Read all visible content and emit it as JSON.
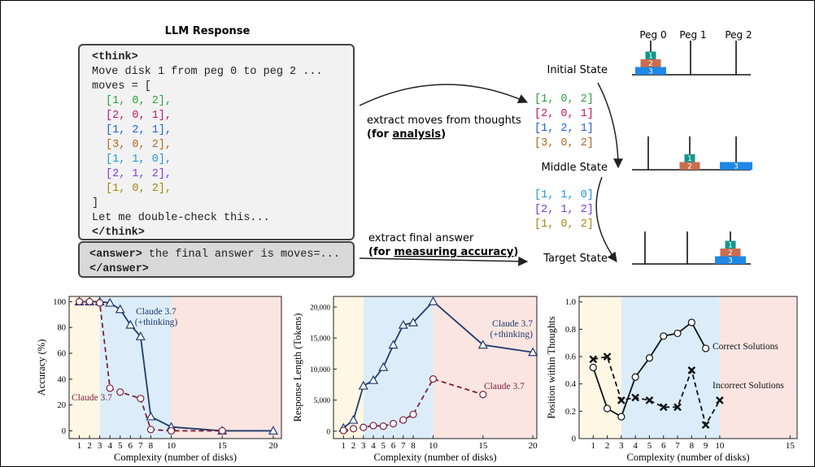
{
  "diagram": {
    "title": "LLM Response",
    "code_head": [
      "<think>",
      "Move disk 1 from peg 0 to peg 2 ...",
      "moves = ["
    ],
    "moves": [
      {
        "text": "[1, 0, 2],",
        "color": "#2e9e3e"
      },
      {
        "text": "[2, 0, 1],",
        "color": "#c2185b"
      },
      {
        "text": "[1, 2, 1],",
        "color": "#1f5fd6"
      },
      {
        "text": "[3, 0, 2],",
        "color": "#b5651d"
      },
      {
        "text": "[1, 1, 0],",
        "color": "#2196e0"
      },
      {
        "text": "[2, 1, 2],",
        "color": "#7b3fd6"
      },
      {
        "text": "[1, 0, 2],",
        "color": "#a8860b"
      }
    ],
    "code_tail": [
      "]",
      "Let me double-check this...",
      "</think>"
    ],
    "answer": [
      [
        "<answer>",
        " the final answer is moves=..."
      ],
      [
        "</answer>"
      ]
    ],
    "arrow_moves": {
      "line1": "extract moves  from thoughts",
      "line2": [
        "(for ",
        "analysis",
        ")"
      ]
    },
    "arrow_answer": {
      "line1": "extract final answer",
      "line2": [
        "(for ",
        "measuring accuracy",
        ")"
      ]
    },
    "extracted_moves": [
      [
        "[1, 0, 2]",
        "[2, 0, 1]",
        "[1, 2, 1]",
        "[3, 0, 2]"
      ],
      [
        "[1, 1, 0]",
        "[2, 1, 2]",
        "[1, 0, 2]"
      ]
    ],
    "states": [
      "Initial State",
      "Middle State",
      "Target State"
    ],
    "pegs": [
      "Peg 0",
      "Peg 1",
      "Peg 2"
    ],
    "disks": [
      "1",
      "2",
      "3"
    ]
  },
  "chart_data": [
    {
      "type": "line",
      "xlabel": "Complexity (number of disks)",
      "ylabel": "Accuracy (%)",
      "xlim": [
        0,
        20.8
      ],
      "ylim": [
        -6,
        104
      ],
      "xticks": [
        1,
        2,
        3,
        4,
        5,
        6,
        7,
        8,
        10,
        15,
        20
      ],
      "yticks": [
        0,
        20,
        40,
        60,
        80,
        100
      ],
      "regions": [
        {
          "from": 0,
          "to": 3,
          "color": "#fdf7e4"
        },
        {
          "from": 3,
          "to": 10,
          "color": "#dcedf9"
        },
        {
          "from": 10,
          "to": 20.8,
          "color": "#fae5e1"
        }
      ],
      "series": [
        {
          "name": "Claude 3.7 (+thinking)",
          "color": "#1f3a6e",
          "marker": "triangle",
          "dashed": false,
          "x": [
            1,
            2,
            3,
            4,
            5,
            6,
            7,
            8,
            10,
            15,
            20
          ],
          "values": [
            100,
            100,
            100,
            99,
            94,
            82,
            73,
            11,
            3,
            0,
            0
          ]
        },
        {
          "name": "Claude 3.7",
          "color": "#7b1f3c",
          "marker": "circle",
          "dashed": true,
          "x": [
            1,
            2,
            3,
            4,
            5,
            7,
            8,
            10,
            15
          ],
          "values": [
            100,
            100,
            99,
            33,
            30,
            25,
            1,
            0,
            0
          ]
        }
      ]
    },
    {
      "type": "line",
      "xlabel": "Complexity (number of disks)",
      "ylabel": "Response Length (Tokens)",
      "xlim": [
        0,
        20.4
      ],
      "ylim": [
        -1200,
        21700
      ],
      "xticks": [
        1,
        2,
        3,
        4,
        5,
        6,
        7,
        8,
        10,
        15,
        20
      ],
      "yticks": [
        0,
        {
          "value": 5000,
          "label": "5,000"
        },
        {
          "value": 10000,
          "label": "10,000"
        },
        {
          "value": 15000,
          "label": "15,000"
        },
        {
          "value": 20000,
          "label": "20,000"
        }
      ],
      "regions": [
        {
          "from": 0,
          "to": 3,
          "color": "#fdf7e4"
        },
        {
          "from": 3,
          "to": 10,
          "color": "#dcedf9"
        },
        {
          "from": 10,
          "to": 20.4,
          "color": "#fae5e1"
        }
      ],
      "series": [
        {
          "name": "Claude 3.7 (+thinking)",
          "color": "#1f3a6e",
          "marker": "triangle",
          "dashed": false,
          "x": [
            1,
            2,
            3,
            4,
            5,
            6,
            7,
            8,
            10,
            15,
            20
          ],
          "values": [
            500,
            1800,
            7300,
            8200,
            10300,
            13900,
            17100,
            17500,
            20900,
            13900,
            12700
          ]
        },
        {
          "name": "Claude 3.7",
          "color": "#7b1f3c",
          "marker": "circle",
          "dashed": true,
          "x": [
            1,
            2,
            3,
            4,
            5,
            6,
            7,
            8,
            10,
            15
          ],
          "values": [
            100,
            400,
            600,
            900,
            800,
            1200,
            1800,
            2700,
            8400,
            5900
          ]
        }
      ]
    },
    {
      "type": "line",
      "xlabel": "Complexity (number of disks)",
      "ylabel": "Position within Thoughts",
      "xlim": [
        0,
        15.5
      ],
      "ylim": [
        0,
        1.04
      ],
      "xticks": [
        1,
        2,
        3,
        4,
        5,
        6,
        7,
        8,
        9,
        10,
        15
      ],
      "yticks": [
        0,
        0.2,
        0.4,
        0.6,
        0.8,
        {
          "value": 1,
          "label": "1.0"
        }
      ],
      "regions": [
        {
          "from": 0,
          "to": 3,
          "color": "#fdf7e4"
        },
        {
          "from": 3,
          "to": 10,
          "color": "#dcedf9"
        },
        {
          "from": 10,
          "to": 15.5,
          "color": "#fae5e1"
        }
      ],
      "series": [
        {
          "name": "Correct Solutions",
          "color": "#111111",
          "marker": "circle",
          "dashed": false,
          "x": [
            1,
            2,
            3,
            4,
            5,
            6,
            7,
            8,
            9
          ],
          "values": [
            0.52,
            0.22,
            0.16,
            0.45,
            0.59,
            0.75,
            0.77,
            0.85,
            0.66
          ]
        },
        {
          "name": "Incorrect Solutions",
          "color": "#111111",
          "marker": "cross",
          "dashed": true,
          "x": [
            1,
            2,
            3,
            4,
            5,
            6,
            7,
            8,
            9,
            10
          ],
          "values": [
            0.58,
            0.6,
            0.28,
            0.3,
            0.28,
            0.23,
            0.23,
            0.5,
            0.1,
            0.28
          ]
        }
      ]
    }
  ]
}
